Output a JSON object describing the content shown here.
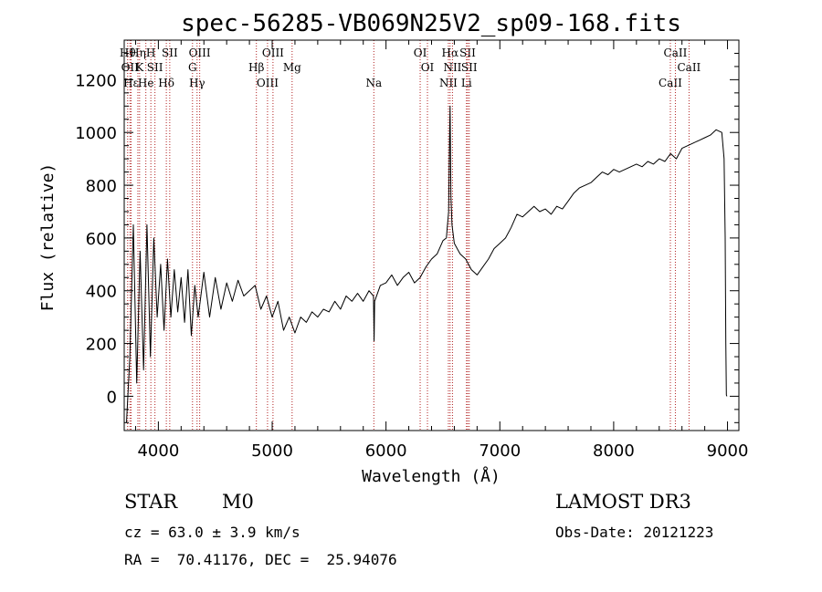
{
  "chart_data": {
    "type": "line",
    "title": "spec-56285-VB069N25V2_sp09-168.fits",
    "xlabel": "Wavelength (Å)",
    "ylabel": "Flux (relative)",
    "xlim": [
      3700,
      9100
    ],
    "ylim": [
      -130,
      1350
    ],
    "x_ticks": [
      4000,
      5000,
      6000,
      7000,
      8000,
      9000
    ],
    "y_ticks": [
      0,
      200,
      400,
      600,
      800,
      1000,
      1200
    ],
    "grid": false,
    "series": [
      {
        "line_color": "#000000",
        "x": [
          3720,
          3750,
          3780,
          3810,
          3840,
          3870,
          3900,
          3930,
          3960,
          3990,
          4020,
          4050,
          4080,
          4110,
          4140,
          4170,
          4200,
          4230,
          4260,
          4290,
          4320,
          4350,
          4400,
          4450,
          4500,
          4550,
          4600,
          4650,
          4700,
          4750,
          4800,
          4850,
          4900,
          4950,
          5000,
          5050,
          5100,
          5150,
          5200,
          5250,
          5300,
          5350,
          5400,
          5450,
          5500,
          5550,
          5600,
          5650,
          5700,
          5750,
          5800,
          5850,
          5890,
          5895,
          5900,
          5950,
          6000,
          6050,
          6100,
          6150,
          6200,
          6250,
          6300,
          6350,
          6400,
          6450,
          6500,
          6530,
          6550,
          6560,
          6563,
          6570,
          6580,
          6600,
          6650,
          6700,
          6750,
          6800,
          6850,
          6900,
          6950,
          7000,
          7050,
          7100,
          7150,
          7200,
          7250,
          7300,
          7350,
          7400,
          7450,
          7500,
          7550,
          7600,
          7650,
          7700,
          7750,
          7800,
          7850,
          7900,
          7950,
          8000,
          8050,
          8100,
          8150,
          8200,
          8250,
          8300,
          8350,
          8400,
          8450,
          8500,
          8550,
          8600,
          8650,
          8700,
          8750,
          8800,
          8850,
          8900,
          8950,
          8970,
          8980,
          8985,
          8990,
          8995
        ],
        "y": [
          -100,
          150,
          650,
          50,
          550,
          100,
          650,
          150,
          600,
          300,
          500,
          250,
          520,
          300,
          480,
          320,
          450,
          280,
          480,
          230,
          420,
          300,
          470,
          300,
          450,
          330,
          430,
          360,
          440,
          380,
          400,
          420,
          330,
          380,
          300,
          360,
          250,
          300,
          240,
          300,
          280,
          320,
          300,
          330,
          320,
          360,
          330,
          380,
          360,
          390,
          360,
          400,
          380,
          210,
          360,
          420,
          430,
          460,
          420,
          450,
          470,
          430,
          450,
          490,
          520,
          540,
          590,
          600,
          700,
          1020,
          1100,
          760,
          650,
          580,
          540,
          520,
          480,
          460,
          490,
          520,
          560,
          580,
          600,
          640,
          690,
          680,
          700,
          720,
          700,
          710,
          690,
          720,
          710,
          740,
          770,
          790,
          800,
          810,
          830,
          850,
          840,
          860,
          850,
          860,
          870,
          880,
          870,
          890,
          880,
          900,
          890,
          920,
          900,
          940,
          950,
          960,
          970,
          980,
          990,
          1010,
          1000,
          900,
          600,
          200,
          5,
          0
        ]
      }
    ],
    "line_markers": [
      {
        "x": 3730,
        "label": "Hθ"
      },
      {
        "x": 3750,
        "label": "OII"
      },
      {
        "x": 3760,
        "label": "Hε"
      },
      {
        "x": 3820,
        "label": "Hη"
      },
      {
        "x": 3835,
        "label": "K"
      },
      {
        "x": 3890,
        "label": "He"
      },
      {
        "x": 3934,
        "label": "H"
      },
      {
        "x": 3970,
        "label": "SII"
      },
      {
        "x": 4070,
        "label": "Hδ"
      },
      {
        "x": 4100,
        "label": "SII"
      },
      {
        "x": 4300,
        "label": "G"
      },
      {
        "x": 4340,
        "label": "Hγ"
      },
      {
        "x": 4363,
        "label": "OIII"
      },
      {
        "x": 4861,
        "label": "Hβ"
      },
      {
        "x": 4959,
        "label": "OIII"
      },
      {
        "x": 5007,
        "label": "OIII"
      },
      {
        "x": 5175,
        "label": "Mg"
      },
      {
        "x": 5893,
        "label": "Na"
      },
      {
        "x": 6300,
        "label": "OI"
      },
      {
        "x": 6364,
        "label": "OI"
      },
      {
        "x": 6548,
        "label": "NII"
      },
      {
        "x": 6563,
        "label": "Hα"
      },
      {
        "x": 6584,
        "label": "NII"
      },
      {
        "x": 6707,
        "label": "Li"
      },
      {
        "x": 6717,
        "label": "SII"
      },
      {
        "x": 6731,
        "label": "SII"
      },
      {
        "x": 8498,
        "label": "CaII"
      },
      {
        "x": 8542,
        "label": "CaII"
      },
      {
        "x": 8662,
        "label": "CaII"
      }
    ],
    "line_marker_color": "#b22222"
  },
  "footer": {
    "object_class": "STAR",
    "subclass": "M0",
    "redshift": "cz = 63.0 ± 3.9 km/s",
    "coords": "RA =  70.41176, DEC =  25.94076",
    "survey": "LAMOST DR3",
    "obs_date": "Obs-Date: 20121223"
  }
}
